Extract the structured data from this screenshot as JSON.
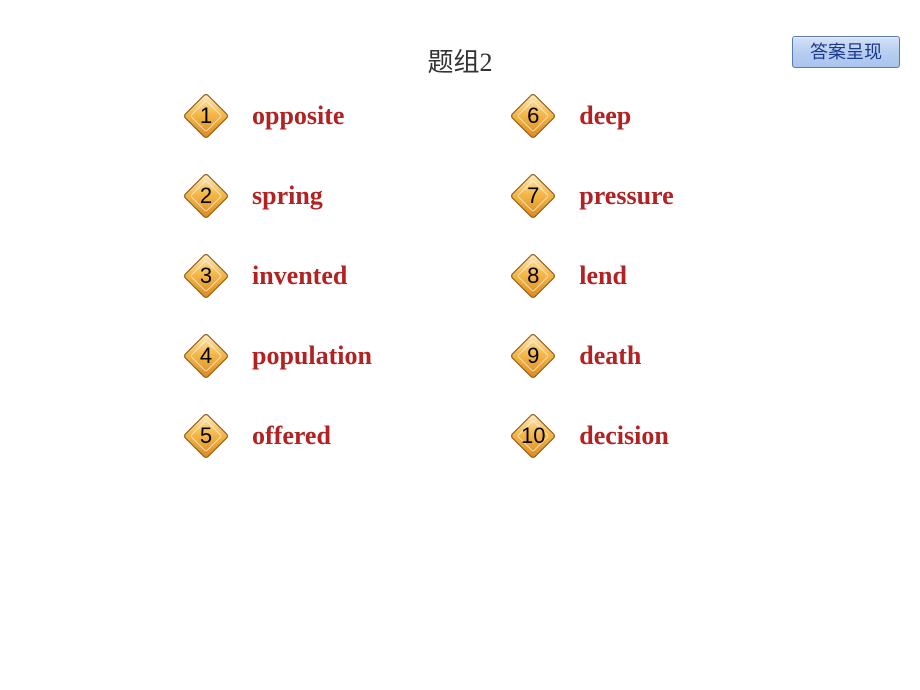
{
  "title": "题组2",
  "answer_button_label": "答案呈现",
  "colors": {
    "background": "#ffffff",
    "title_text": "#333333",
    "word_text": "#b22222",
    "diamond_border": "#8a5a1a",
    "diamond_light": "#fdeec8",
    "diamond_mid": "#f5b84a",
    "diamond_dark": "#d98a1f",
    "button_bg_top": "#d4e2f7",
    "button_bg_bottom": "#aac4ee",
    "button_border": "#5a7ab0",
    "button_text": "#1a3a8a"
  },
  "typography": {
    "title_fontsize": 26,
    "word_fontsize": 26,
    "word_weight": "bold",
    "number_fontsize": 22,
    "button_fontsize": 18
  },
  "diamond_size": 52,
  "row_gap": 28,
  "left_column": [
    {
      "num": "1",
      "word": "opposite"
    },
    {
      "num": "2",
      "word": "spring"
    },
    {
      "num": "3",
      "word": "invented"
    },
    {
      "num": "4",
      "word": "population"
    },
    {
      "num": "5",
      "word": "offered"
    }
  ],
  "right_column": [
    {
      "num": "6",
      "word": "deep"
    },
    {
      "num": "7",
      "word": "pressure"
    },
    {
      "num": "8",
      "word": "lend"
    },
    {
      "num": "9",
      "word": "death"
    },
    {
      "num": "10",
      "word": "decision"
    }
  ]
}
